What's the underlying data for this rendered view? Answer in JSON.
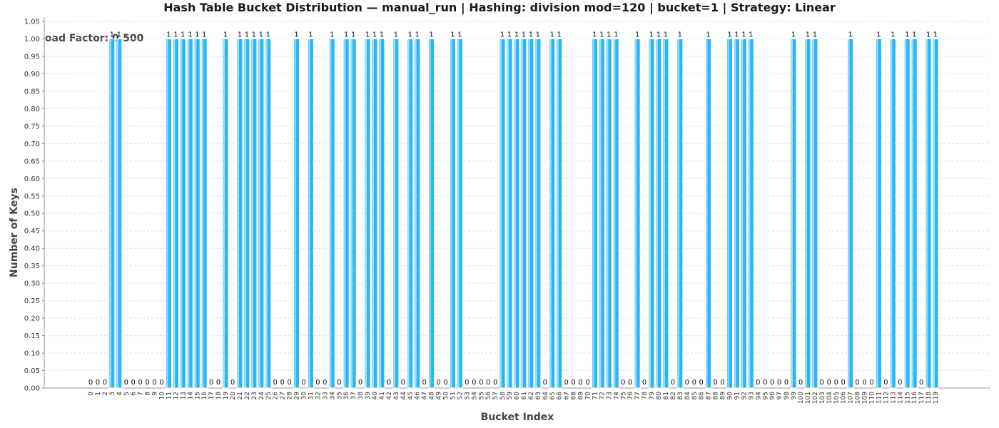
{
  "chart_data": {
    "type": "bar",
    "title": "Hash Table Bucket Distribution — manual_run | Hashing: division mod=120 | bucket=1 | Strategy: Linear",
    "annotation": "Load Factor: 0.500",
    "xlabel": "Bucket Index",
    "ylabel": "Number of Keys",
    "ylim": [
      0,
      1.05
    ],
    "ytick_step": 0.05,
    "grid": true,
    "bar_color": "#29b6f6",
    "categories": [
      "0",
      "1",
      "2",
      "3",
      "4",
      "5",
      "6",
      "7",
      "8",
      "9",
      "10",
      "11",
      "12",
      "13",
      "14",
      "15",
      "16",
      "17",
      "18",
      "19",
      "20",
      "21",
      "22",
      "23",
      "24",
      "25",
      "26",
      "27",
      "28",
      "29",
      "30",
      "31",
      "32",
      "33",
      "34",
      "35",
      "36",
      "37",
      "38",
      "39",
      "40",
      "41",
      "42",
      "43",
      "44",
      "45",
      "46",
      "47",
      "48",
      "49",
      "50",
      "51",
      "52",
      "53",
      "54",
      "55",
      "56",
      "57",
      "58",
      "59",
      "60",
      "61",
      "62",
      "63",
      "64",
      "65",
      "66",
      "67",
      "68",
      "69",
      "70",
      "71",
      "72",
      "73",
      "74",
      "75",
      "76",
      "77",
      "78",
      "79",
      "80",
      "81",
      "82",
      "83",
      "84",
      "85",
      "86",
      "87",
      "88",
      "89",
      "90",
      "91",
      "92",
      "93",
      "94",
      "95",
      "96",
      "97",
      "98",
      "99",
      "100",
      "101",
      "102",
      "103",
      "104",
      "105",
      "106",
      "107",
      "108",
      "109",
      "110",
      "111",
      "112",
      "113",
      "114",
      "115",
      "116",
      "117",
      "118",
      "119"
    ],
    "values": [
      0,
      0,
      0,
      1,
      1,
      0,
      0,
      0,
      0,
      0,
      0,
      1,
      1,
      1,
      1,
      1,
      1,
      0,
      0,
      1,
      0,
      1,
      1,
      1,
      1,
      1,
      0,
      0,
      0,
      1,
      0,
      1,
      0,
      0,
      1,
      0,
      1,
      1,
      0,
      1,
      1,
      1,
      0,
      1,
      0,
      1,
      1,
      0,
      1,
      0,
      0,
      1,
      1,
      0,
      0,
      0,
      0,
      0,
      1,
      1,
      1,
      1,
      1,
      1,
      0,
      1,
      1,
      0,
      0,
      0,
      0,
      1,
      1,
      1,
      1,
      0,
      0,
      1,
      0,
      1,
      1,
      1,
      0,
      1,
      0,
      0,
      0,
      1,
      0,
      0,
      1,
      1,
      1,
      1,
      0,
      0,
      0,
      0,
      0,
      1,
      0,
      1,
      1,
      0,
      0,
      0,
      0,
      1,
      0,
      0,
      0,
      1,
      0,
      1,
      0,
      1,
      1,
      0,
      1,
      1
    ]
  }
}
